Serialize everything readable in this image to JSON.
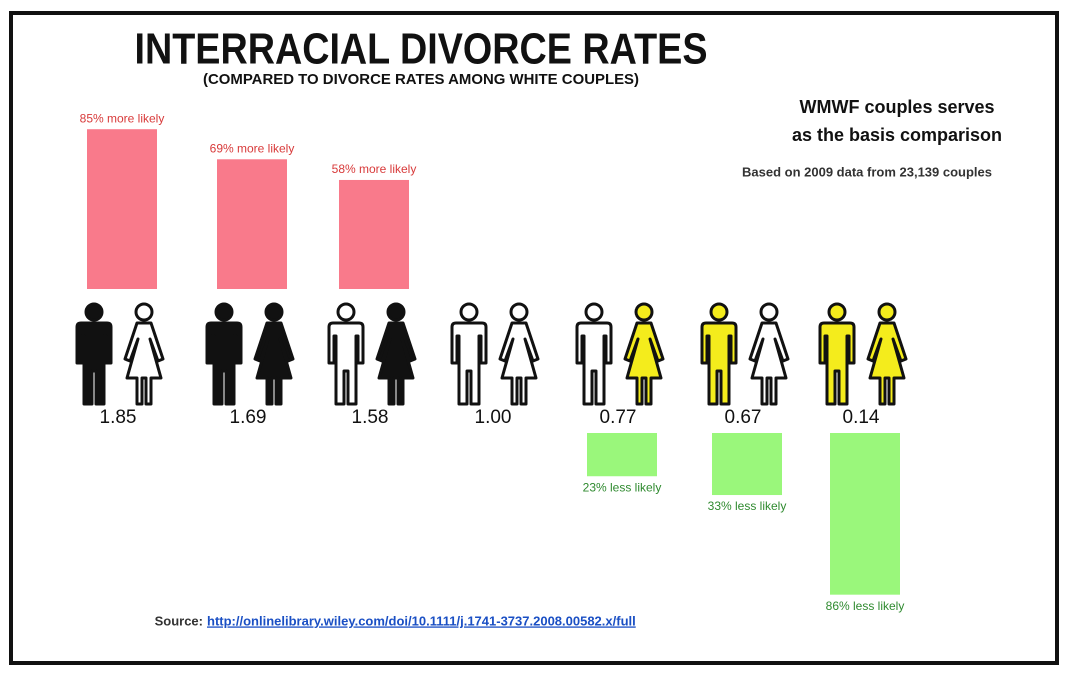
{
  "chart_data": {
    "type": "bar",
    "title": "INTERRACIAL DIVORCE RATES",
    "subtitle": "(COMPARED TO DIVORCE RATES AMONG WHITE COUPLES)",
    "annotations": [
      "WMWF couples serves",
      "as the basis comparison",
      "Based on 2009 data from 23,139 couples"
    ],
    "values": [
      1.85,
      1.69,
      1.58,
      1.0,
      0.77,
      0.67,
      0.14
    ],
    "value_labels": [
      "1.85",
      "1.69",
      "1.58",
      "1.00",
      "0.77",
      "0.67",
      "0.14"
    ],
    "bar_labels": [
      "85% more likely",
      "69% more likely",
      "58% more likely",
      null,
      "23% less likely",
      "33% less likely",
      "86% less likely"
    ],
    "couple_colors": [
      [
        "#111111",
        "#ffffff"
      ],
      [
        "#111111",
        "#111111"
      ],
      [
        "#ffffff",
        "#111111"
      ],
      [
        "#ffffff",
        "#ffffff"
      ],
      [
        "#ffffff",
        "#f4ec1c"
      ],
      [
        "#f4ec1c",
        "#ffffff"
      ],
      [
        "#f4ec1c",
        "#f4ec1c"
      ]
    ],
    "up_color": "#f97a8b",
    "down_color": "#9af77b",
    "up_label_color": "#d83a3a",
    "down_label_color": "#2f8a2f",
    "source_label": "Source:",
    "source_url": "http://onlinelibrary.wiley.com/doi/10.1111/j.1741-3737.2008.00582.x/full"
  }
}
